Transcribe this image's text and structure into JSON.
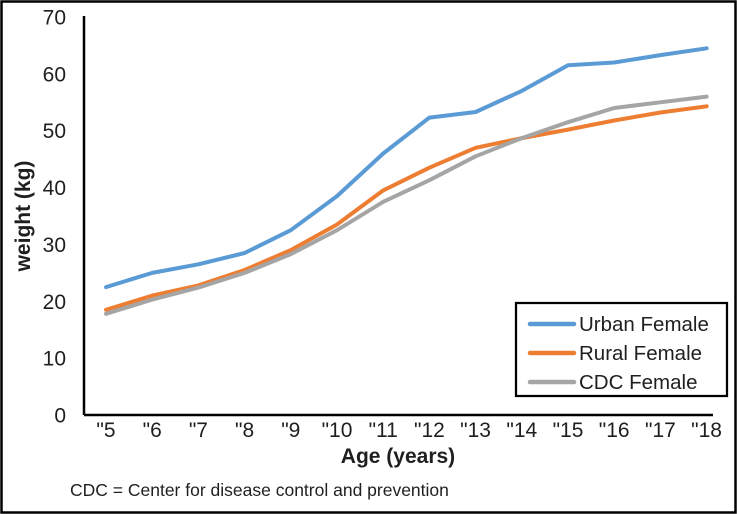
{
  "chart_data": {
    "type": "line",
    "title": "",
    "xlabel": "Age (years)",
    "ylabel": "weight (kg)",
    "footnote": "CDC = Center for disease control and prevention",
    "x_tick_labels": [
      "\"5",
      "\"6",
      "\"7",
      "\"8",
      "\"9",
      "\"10",
      "\"11",
      "\"12",
      "\"13",
      "\"14",
      "\"15",
      "\"16",
      "\"17",
      "\"18"
    ],
    "ages": [
      5,
      6,
      7,
      8,
      9,
      10,
      11,
      12,
      13,
      14,
      15,
      16,
      17,
      18
    ],
    "y_ticks": [
      0,
      10,
      20,
      30,
      40,
      50,
      60,
      70
    ],
    "ylim": [
      0,
      70
    ],
    "grid": false,
    "legend_position": "inside-bottom-right",
    "series": [
      {
        "name": "Urban Female",
        "color": "#5B9BD5",
        "values": [
          22.5,
          25,
          26.5,
          28.5,
          32.5,
          38.5,
          46,
          52.3,
          53.3,
          57,
          61.5,
          62,
          63.3,
          64.5
        ]
      },
      {
        "name": "Rural Female",
        "color": "#ED7D31",
        "values": [
          18.5,
          21,
          22.8,
          25.5,
          29,
          33.5,
          39.5,
          43.5,
          47,
          48.7,
          50.2,
          51.8,
          53.2,
          54.3
        ]
      },
      {
        "name": "CDC Female",
        "color": "#A5A5A5",
        "values": [
          17.8,
          20.3,
          22.4,
          25,
          28.3,
          32.5,
          37.5,
          41.3,
          45.5,
          48.7,
          51.5,
          54,
          55,
          56
        ]
      }
    ],
    "axis_color": "#000000",
    "text_color": "#1f1f1f"
  }
}
